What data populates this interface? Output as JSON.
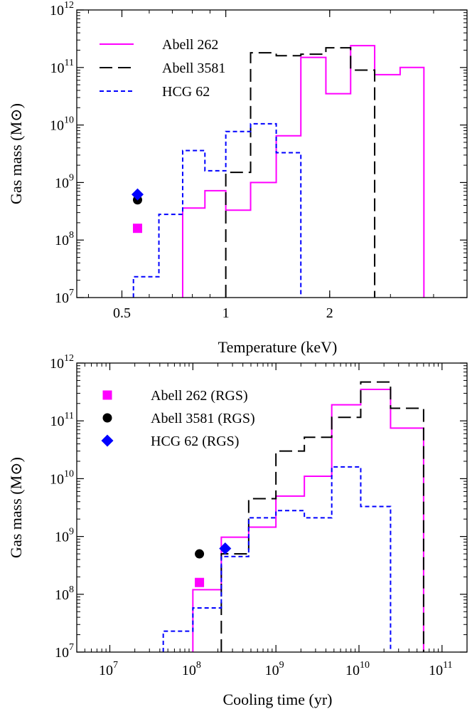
{
  "chart_data": [
    {
      "type": "line",
      "xscale": "log",
      "yscale": "log",
      "xlabel": "Temperature (keV)",
      "ylabel": "Gas mass (M⊙)",
      "xlim": [
        0.37,
        5.0
      ],
      "ylim": [
        10000000.0,
        1000000000000.0
      ],
      "x_ticks": [
        {
          "value": 0.5,
          "label": "0.5"
        },
        {
          "value": 1,
          "label": "1"
        },
        {
          "value": 2,
          "label": "2"
        }
      ],
      "y_ticks": [
        {
          "value": 10000000.0,
          "base": "10",
          "exp": "7"
        },
        {
          "value": 100000000.0,
          "base": "10",
          "exp": "8"
        },
        {
          "value": 1000000000.0,
          "base": "10",
          "exp": "9"
        },
        {
          "value": 10000000000.0,
          "base": "10",
          "exp": "10"
        },
        {
          "value": 100000000000.0,
          "base": "10",
          "exp": "11"
        },
        {
          "value": 1000000000000.0,
          "base": "10",
          "exp": "12"
        }
      ],
      "grid": false,
      "legend_position": "top-left",
      "series": [
        {
          "name": "Abell 262",
          "style": "solid",
          "color": "#ff00ff",
          "edges": [
            0.75,
            0.87,
            1.0,
            1.18,
            1.4,
            1.65,
            1.95,
            2.3,
            2.7,
            3.2,
            3.75
          ],
          "values": [
            360000000.0,
            720000000.0,
            330000000.0,
            1000000000.0,
            6500000000.0,
            150000000000.0,
            35000000000.0,
            240000000000.0,
            75000000000.0,
            100000000000.0
          ]
        },
        {
          "name": "Abell 3581",
          "style": "longdash",
          "color": "#000000",
          "edges": [
            1.0,
            1.18,
            1.4,
            1.65,
            1.95,
            2.3,
            2.7
          ],
          "values": [
            1500000000.0,
            180000000000.0,
            160000000000.0,
            170000000000.0,
            220000000000.0,
            90000000000.0
          ]
        },
        {
          "name": "HCG 62",
          "style": "shortdash",
          "color": "#0000ff",
          "edges": [
            0.54,
            0.64,
            0.75,
            0.87,
            1.0,
            1.18,
            1.4,
            1.65
          ],
          "values": [
            23000000.0,
            280000000.0,
            3600000000.0,
            1600000000.0,
            7700000000.0,
            10500000000.0,
            3300000000.0
          ]
        }
      ],
      "points": [
        {
          "name": "Abell 262 (RGS)",
          "shape": "square",
          "color": "#ff00ff",
          "x": 0.555,
          "y": 160000000.0
        },
        {
          "name": "Abell 3581 (RGS)",
          "shape": "circle",
          "color": "#000000",
          "x": 0.555,
          "y": 500000000.0
        },
        {
          "name": "HCG 62 (RGS)",
          "shape": "diamond",
          "color": "#0000ff",
          "x": 0.555,
          "y": 620000000.0
        }
      ]
    },
    {
      "type": "line",
      "xscale": "log",
      "yscale": "log",
      "xlabel": "Cooling time (yr)",
      "ylabel": "Gas mass (M⊙)",
      "xlim": [
        4000000.0,
        200000000000.0
      ],
      "ylim": [
        10000000.0,
        1000000000000.0
      ],
      "x_ticks": [
        {
          "value": 10000000.0,
          "base": "10",
          "exp": "7"
        },
        {
          "value": 100000000.0,
          "base": "10",
          "exp": "8"
        },
        {
          "value": 1000000000.0,
          "base": "10",
          "exp": "9"
        },
        {
          "value": 10000000000.0,
          "base": "10",
          "exp": "10"
        },
        {
          "value": 100000000000.0,
          "base": "10",
          "exp": "11"
        }
      ],
      "y_ticks": [
        {
          "value": 10000000.0,
          "base": "10",
          "exp": "7"
        },
        {
          "value": 100000000.0,
          "base": "10",
          "exp": "8"
        },
        {
          "value": 1000000000.0,
          "base": "10",
          "exp": "9"
        },
        {
          "value": 10000000000.0,
          "base": "10",
          "exp": "10"
        },
        {
          "value": 100000000000.0,
          "base": "10",
          "exp": "11"
        },
        {
          "value": 1000000000000.0,
          "base": "10",
          "exp": "12"
        }
      ],
      "grid": false,
      "legend_position": "top-left",
      "series": [
        {
          "name": "Abell 262",
          "style": "solid",
          "color": "#ff00ff",
          "edges": [
            100000000.0,
            220000000.0,
            470000000.0,
            1000000000.0,
            2200000000.0,
            4700000000.0,
            10500000000.0,
            24000000000.0,
            60000000000.0
          ],
          "values": [
            120000000.0,
            970000000.0,
            1450000000.0,
            5000000000.0,
            11000000000.0,
            190000000000.0,
            350000000000.0,
            75000000000.0
          ]
        },
        {
          "name": "Abell 3581",
          "style": "longdash",
          "color": "#000000",
          "edges": [
            220000000.0,
            470000000.0,
            1000000000.0,
            2200000000.0,
            4700000000.0,
            10500000000.0,
            24000000000.0,
            60000000000.0
          ],
          "values": [
            500000000.0,
            4500000000.0,
            30000000000.0,
            52000000000.0,
            115000000000.0,
            470000000000.0,
            165000000000.0
          ]
        },
        {
          "name": "HCG 62",
          "style": "shortdash",
          "color": "#0000ff",
          "edges": [
            44000000.0,
            100000000.0,
            220000000.0,
            470000000.0,
            1000000000.0,
            2200000000.0,
            4700000000.0,
            10500000000.0,
            24000000000.0
          ],
          "values": [
            23000000.0,
            58000000.0,
            450000000.0,
            2100000000.0,
            2800000000.0,
            2100000000.0,
            16000000000.0,
            3300000000.0
          ]
        }
      ],
      "points": [
        {
          "name": "Abell 262 (RGS)",
          "shape": "square",
          "color": "#ff00ff",
          "x": 120000000.0,
          "y": 160000000.0
        },
        {
          "name": "Abell 3581 (RGS)",
          "shape": "circle",
          "color": "#000000",
          "x": 120000000.0,
          "y": 500000000.0
        },
        {
          "name": "HCG 62 (RGS)",
          "shape": "diamond",
          "color": "#0000ff",
          "x": 245000000.0,
          "y": 620000000.0
        }
      ]
    }
  ]
}
